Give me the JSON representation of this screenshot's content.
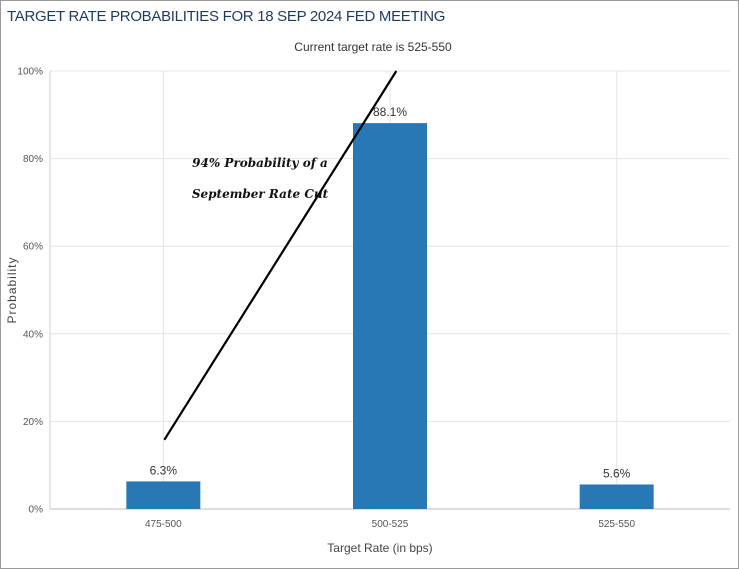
{
  "chart_data": {
    "type": "bar",
    "title": "TARGET RATE PROBABILITIES FOR 18 SEP 2024 FED MEETING",
    "subtitle": "Current target rate is 525-550",
    "xlabel": "Target Rate (in bps)",
    "ylabel": "Probability",
    "categories": [
      "475-500",
      "500-525",
      "525-550"
    ],
    "values": [
      6.3,
      88.1,
      5.6
    ],
    "value_labels": [
      "6.3%",
      "88.1%",
      "5.6%"
    ],
    "ylim": [
      0,
      100
    ],
    "yticks": [
      0,
      20,
      40,
      60,
      80,
      100
    ],
    "ytick_labels": [
      "0%",
      "20%",
      "40%",
      "60%",
      "80%",
      "100%"
    ],
    "grid": true,
    "bar_color": "#2878b5",
    "annotation": {
      "lines": [
        "94% Probability of a",
        "September Rate Cut"
      ],
      "arrow_from_category": "475-500",
      "arrow_to_value": 100
    }
  }
}
